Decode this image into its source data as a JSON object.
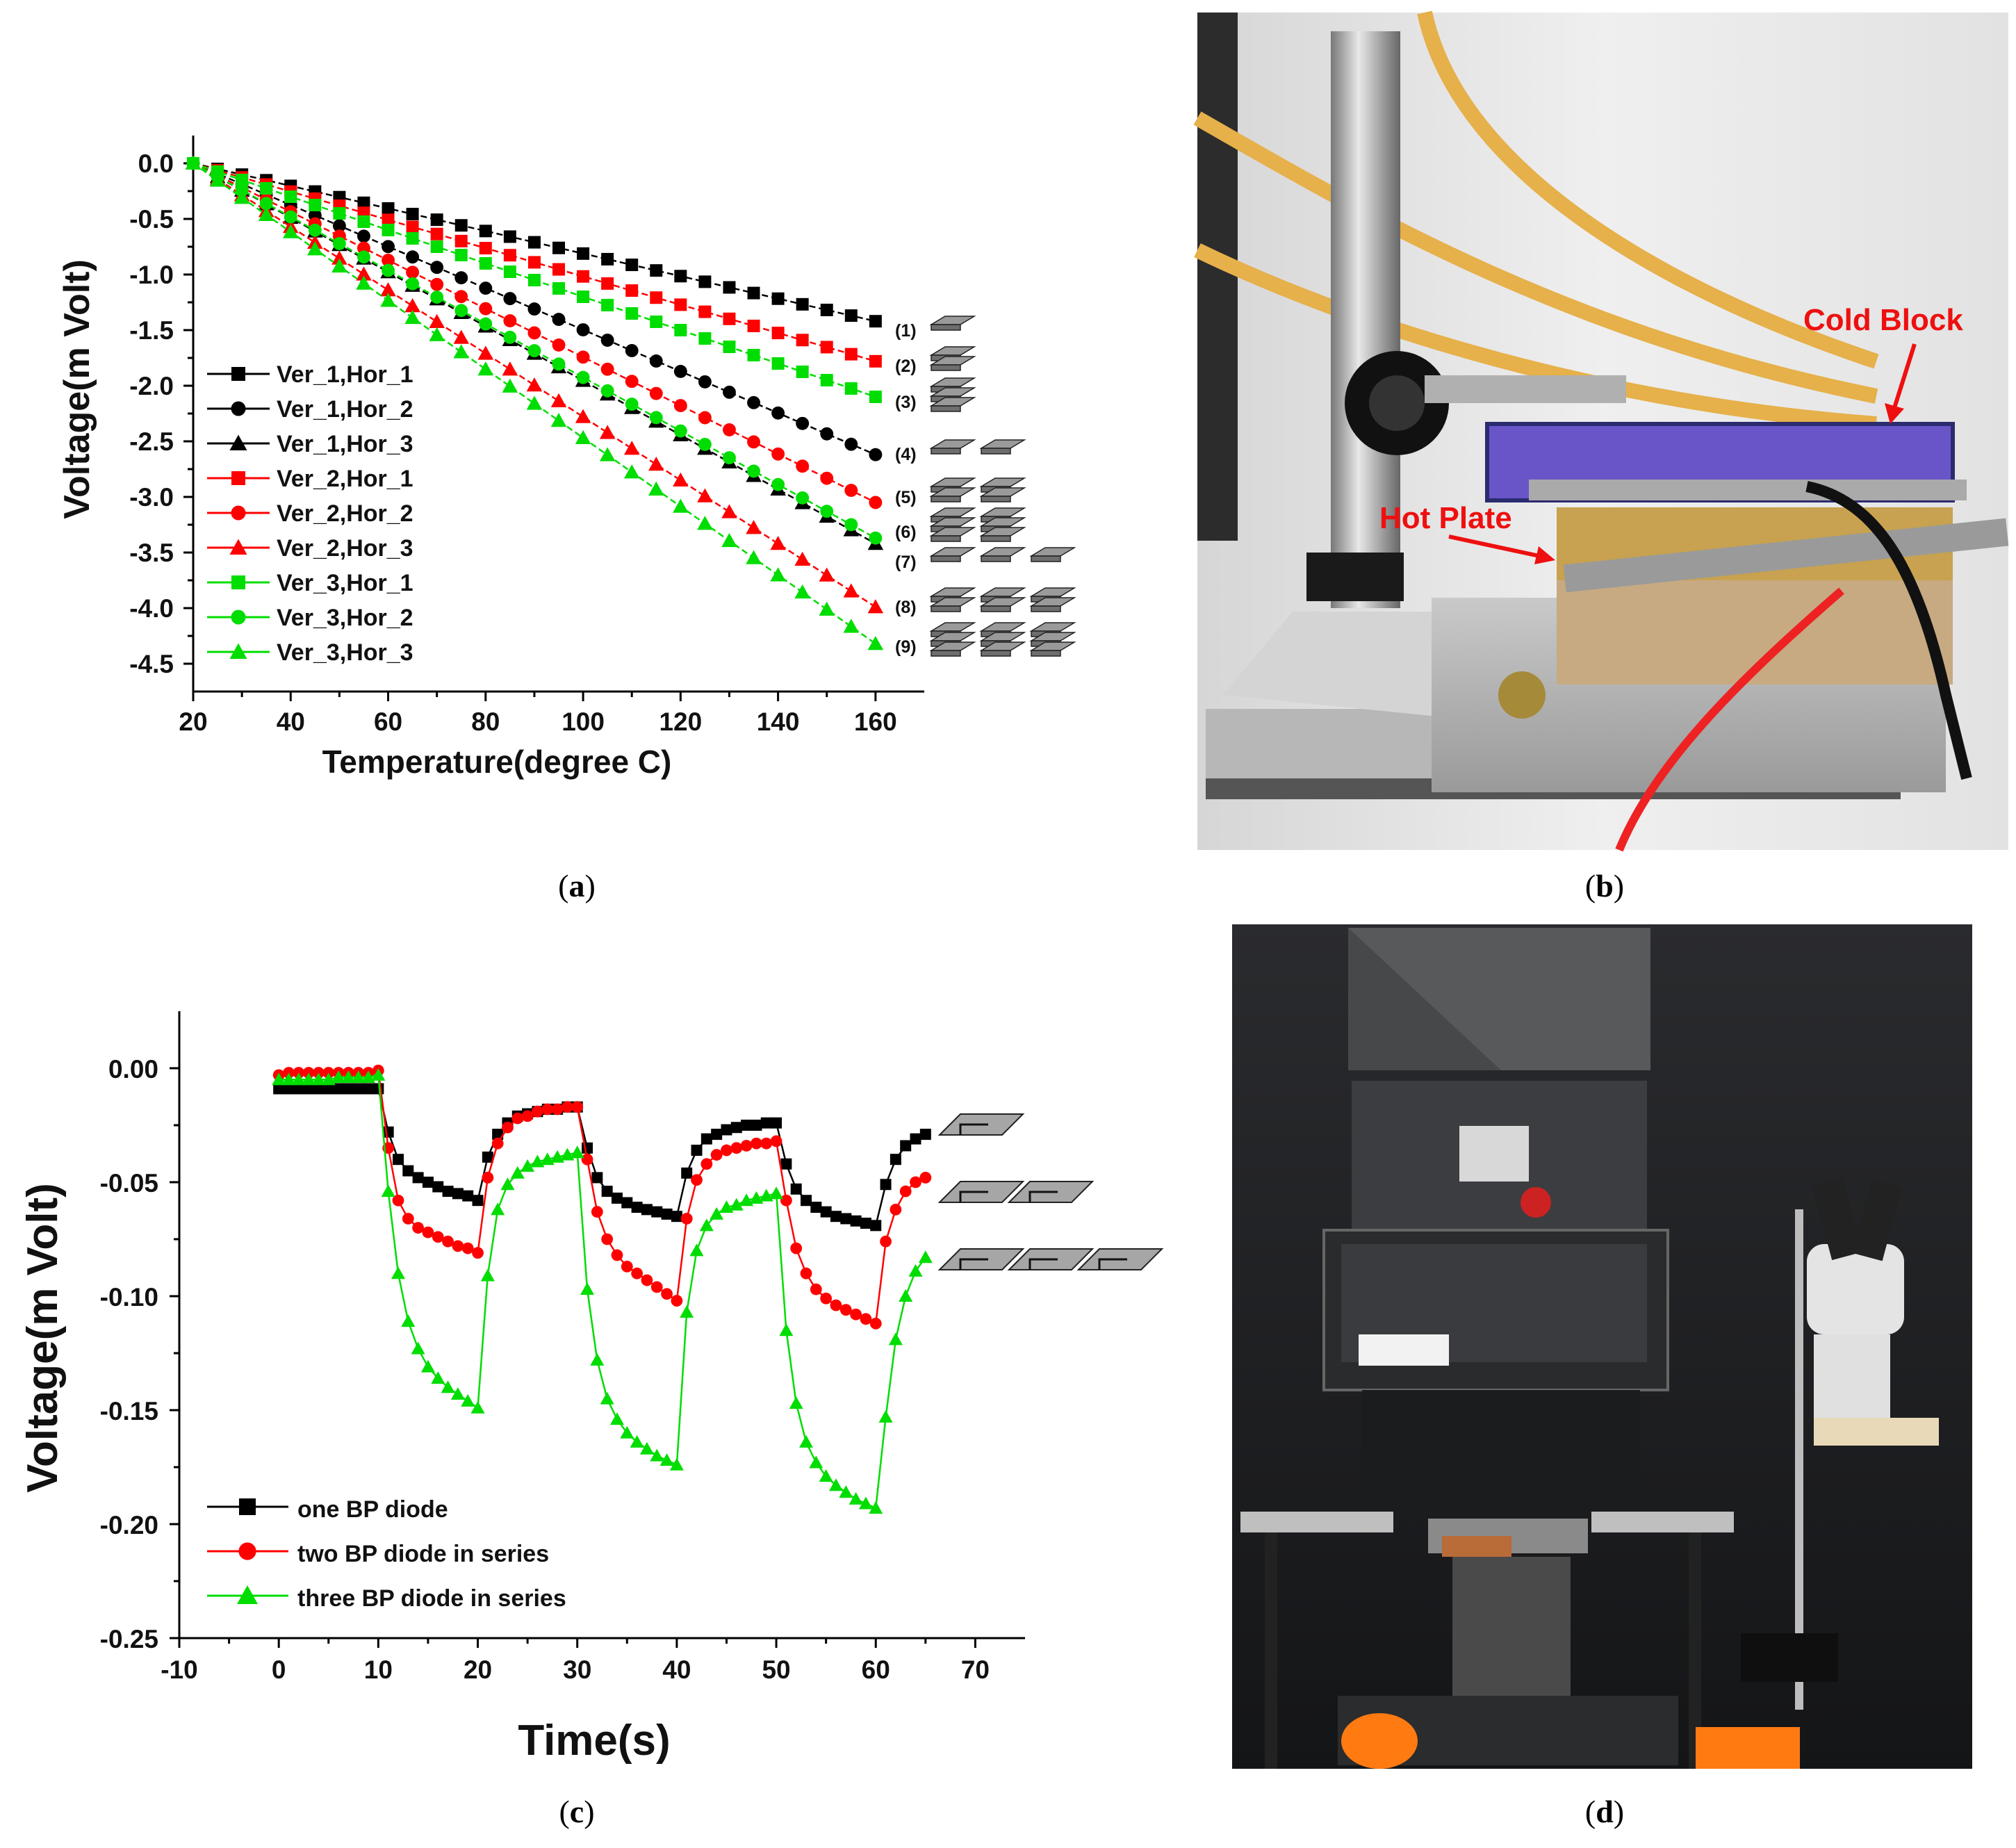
{
  "captions": {
    "a": "a",
    "b": "b",
    "c": "c",
    "d": "d"
  },
  "photo_b": {
    "cold_block_label": "Cold Block",
    "hot_plate_label": "Hot Plate"
  },
  "chart_data": [
    {
      "id": "a",
      "type": "line",
      "xlabel": "Temperature(degree C)",
      "ylabel": "Voltage(m Volt)",
      "xlim": [
        20,
        170
      ],
      "ylim": [
        -4.75,
        0.25
      ],
      "xticks": [
        20,
        40,
        60,
        80,
        100,
        120,
        140,
        160
      ],
      "yticks": [
        0.0,
        -0.5,
        -1.0,
        -1.5,
        -2.0,
        -2.5,
        -3.0,
        -3.5,
        -4.0,
        -4.5
      ],
      "ytick_labels": [
        "0.0",
        "-0.5",
        "-1.0",
        "-1.5",
        "-2.0",
        "-2.5",
        "-3.0",
        "-3.5",
        "-4.0",
        "-4.5"
      ],
      "x": [
        20,
        25,
        30,
        35,
        40,
        45,
        50,
        55,
        60,
        65,
        70,
        75,
        80,
        85,
        90,
        95,
        100,
        105,
        110,
        115,
        120,
        125,
        130,
        135,
        140,
        145,
        150,
        155,
        160
      ],
      "legend_position": "bottom-left",
      "grid": false,
      "series": [
        {
          "name": "Ver_1,Hor_1",
          "color": "#000000",
          "marker": "square",
          "end_value": -1.42,
          "label": "(1)"
        },
        {
          "name": "Ver_1,Hor_2",
          "color": "#000000",
          "marker": "circle",
          "end_value": -2.62,
          "label": "(4)"
        },
        {
          "name": "Ver_1,Hor_3",
          "color": "#000000",
          "marker": "triangle",
          "end_value": -3.42,
          "label": "(6)"
        },
        {
          "name": "Ver_2,Hor_1",
          "color": "#ff0000",
          "marker": "square",
          "end_value": -1.78,
          "label": "(2)"
        },
        {
          "name": "Ver_2,Hor_2",
          "color": "#ff0000",
          "marker": "circle",
          "end_value": -3.05,
          "label": "(5)"
        },
        {
          "name": "Ver_2,Hor_3",
          "color": "#ff0000",
          "marker": "triangle",
          "end_value": -3.99,
          "label": "(8)"
        },
        {
          "name": "Ver_3,Hor_1",
          "color": "#00dd00",
          "marker": "square",
          "end_value": -2.1,
          "label": "(3)"
        },
        {
          "name": "Ver_3,Hor_2",
          "color": "#00dd00",
          "marker": "circle",
          "end_value": -3.37,
          "label": "(7)"
        },
        {
          "name": "Ver_3,Hor_3",
          "color": "#00dd00",
          "marker": "triangle",
          "end_value": -4.32,
          "label": "(9)"
        }
      ],
      "series_values_note_free": true
    },
    {
      "id": "c",
      "type": "line",
      "xlabel": "Time(s)",
      "ylabel": "Voltage(m Volt)",
      "xlim": [
        -10,
        75
      ],
      "ylim": [
        -0.25,
        0.025
      ],
      "xticks": [
        -10,
        0,
        10,
        20,
        30,
        40,
        50,
        60,
        70
      ],
      "yticks": [
        0.0,
        -0.05,
        -0.1,
        -0.15,
        -0.2,
        -0.25
      ],
      "ytick_labels": [
        "0.00",
        "-0.05",
        "-0.10",
        "-0.15",
        "-0.20",
        "-0.25"
      ],
      "legend_position": "bottom-left",
      "grid": false,
      "series": [
        {
          "name": "one BP diode",
          "color": "#000000",
          "marker": "square",
          "points": [
            [
              0,
              -0.009
            ],
            [
              1,
              -0.009
            ],
            [
              2,
              -0.009
            ],
            [
              3,
              -0.009
            ],
            [
              4,
              -0.009
            ],
            [
              5,
              -0.009
            ],
            [
              6,
              -0.009
            ],
            [
              7,
              -0.009
            ],
            [
              8,
              -0.009
            ],
            [
              9,
              -0.009
            ],
            [
              10,
              -0.009
            ],
            [
              11,
              -0.028
            ],
            [
              12,
              -0.04
            ],
            [
              13,
              -0.045
            ],
            [
              14,
              -0.048
            ],
            [
              15,
              -0.05
            ],
            [
              16,
              -0.052
            ],
            [
              17,
              -0.054
            ],
            [
              18,
              -0.055
            ],
            [
              19,
              -0.056
            ],
            [
              20,
              -0.058
            ],
            [
              21,
              -0.039
            ],
            [
              22,
              -0.029
            ],
            [
              23,
              -0.024
            ],
            [
              24,
              -0.021
            ],
            [
              25,
              -0.02
            ],
            [
              26,
              -0.019
            ],
            [
              27,
              -0.018
            ],
            [
              28,
              -0.018
            ],
            [
              29,
              -0.017
            ],
            [
              30,
              -0.017
            ],
            [
              31,
              -0.035
            ],
            [
              32,
              -0.048
            ],
            [
              33,
              -0.054
            ],
            [
              34,
              -0.057
            ],
            [
              35,
              -0.059
            ],
            [
              36,
              -0.061
            ],
            [
              37,
              -0.062
            ],
            [
              38,
              -0.063
            ],
            [
              39,
              -0.064
            ],
            [
              40,
              -0.065
            ],
            [
              41,
              -0.046
            ],
            [
              42,
              -0.036
            ],
            [
              43,
              -0.031
            ],
            [
              44,
              -0.029
            ],
            [
              45,
              -0.027
            ],
            [
              46,
              -0.026
            ],
            [
              47,
              -0.025
            ],
            [
              48,
              -0.025
            ],
            [
              49,
              -0.024
            ],
            [
              50,
              -0.024
            ],
            [
              51,
              -0.042
            ],
            [
              52,
              -0.053
            ],
            [
              53,
              -0.058
            ],
            [
              54,
              -0.061
            ],
            [
              55,
              -0.063
            ],
            [
              56,
              -0.065
            ],
            [
              57,
              -0.066
            ],
            [
              58,
              -0.067
            ],
            [
              59,
              -0.068
            ],
            [
              60,
              -0.069
            ],
            [
              61,
              -0.051
            ],
            [
              62,
              -0.04
            ],
            [
              63,
              -0.034
            ],
            [
              64,
              -0.031
            ],
            [
              65,
              -0.029
            ]
          ]
        },
        {
          "name": "two BP diode in series",
          "color": "#ff0000",
          "marker": "circle",
          "points": [
            [
              0,
              -0.003
            ],
            [
              1,
              -0.002
            ],
            [
              2,
              -0.002
            ],
            [
              3,
              -0.002
            ],
            [
              4,
              -0.002
            ],
            [
              5,
              -0.002
            ],
            [
              6,
              -0.002
            ],
            [
              7,
              -0.002
            ],
            [
              8,
              -0.002
            ],
            [
              9,
              -0.002
            ],
            [
              10,
              -0.001
            ],
            [
              11,
              -0.035
            ],
            [
              12,
              -0.058
            ],
            [
              13,
              -0.066
            ],
            [
              14,
              -0.07
            ],
            [
              15,
              -0.072
            ],
            [
              16,
              -0.074
            ],
            [
              17,
              -0.076
            ],
            [
              18,
              -0.078
            ],
            [
              19,
              -0.079
            ],
            [
              20,
              -0.081
            ],
            [
              21,
              -0.048
            ],
            [
              22,
              -0.033
            ],
            [
              23,
              -0.026
            ],
            [
              24,
              -0.022
            ],
            [
              25,
              -0.021
            ],
            [
              26,
              -0.019
            ],
            [
              27,
              -0.018
            ],
            [
              28,
              -0.018
            ],
            [
              29,
              -0.017
            ],
            [
              30,
              -0.017
            ],
            [
              31,
              -0.04
            ],
            [
              32,
              -0.063
            ],
            [
              33,
              -0.075
            ],
            [
              34,
              -0.082
            ],
            [
              35,
              -0.087
            ],
            [
              36,
              -0.09
            ],
            [
              37,
              -0.093
            ],
            [
              38,
              -0.096
            ],
            [
              39,
              -0.099
            ],
            [
              40,
              -0.102
            ],
            [
              41,
              -0.066
            ],
            [
              42,
              -0.049
            ],
            [
              43,
              -0.042
            ],
            [
              44,
              -0.038
            ],
            [
              45,
              -0.036
            ],
            [
              46,
              -0.035
            ],
            [
              47,
              -0.034
            ],
            [
              48,
              -0.033
            ],
            [
              49,
              -0.033
            ],
            [
              50,
              -0.032
            ],
            [
              51,
              -0.058
            ],
            [
              52,
              -0.079
            ],
            [
              53,
              -0.09
            ],
            [
              54,
              -0.097
            ],
            [
              55,
              -0.101
            ],
            [
              56,
              -0.104
            ],
            [
              57,
              -0.106
            ],
            [
              58,
              -0.108
            ],
            [
              59,
              -0.11
            ],
            [
              60,
              -0.112
            ],
            [
              61,
              -0.076
            ],
            [
              62,
              -0.062
            ],
            [
              63,
              -0.054
            ],
            [
              64,
              -0.05
            ],
            [
              65,
              -0.048
            ]
          ]
        },
        {
          "name": "three BP diode in series",
          "color": "#00dd00",
          "marker": "triangle",
          "points": [
            [
              0,
              -0.005
            ],
            [
              1,
              -0.005
            ],
            [
              2,
              -0.005
            ],
            [
              3,
              -0.005
            ],
            [
              4,
              -0.005
            ],
            [
              5,
              -0.005
            ],
            [
              6,
              -0.004
            ],
            [
              7,
              -0.004
            ],
            [
              8,
              -0.004
            ],
            [
              9,
              -0.004
            ],
            [
              10,
              -0.003
            ],
            [
              11,
              -0.054
            ],
            [
              12,
              -0.09
            ],
            [
              13,
              -0.111
            ],
            [
              14,
              -0.123
            ],
            [
              15,
              -0.131
            ],
            [
              16,
              -0.136
            ],
            [
              17,
              -0.14
            ],
            [
              18,
              -0.143
            ],
            [
              19,
              -0.146
            ],
            [
              20,
              -0.149
            ],
            [
              21,
              -0.091
            ],
            [
              22,
              -0.062
            ],
            [
              23,
              -0.051
            ],
            [
              24,
              -0.046
            ],
            [
              25,
              -0.043
            ],
            [
              26,
              -0.041
            ],
            [
              27,
              -0.04
            ],
            [
              28,
              -0.039
            ],
            [
              29,
              -0.038
            ],
            [
              30,
              -0.037
            ],
            [
              31,
              -0.097
            ],
            [
              32,
              -0.128
            ],
            [
              33,
              -0.145
            ],
            [
              34,
              -0.154
            ],
            [
              35,
              -0.16
            ],
            [
              36,
              -0.164
            ],
            [
              37,
              -0.167
            ],
            [
              38,
              -0.17
            ],
            [
              39,
              -0.172
            ],
            [
              40,
              -0.174
            ],
            [
              41,
              -0.107
            ],
            [
              42,
              -0.08
            ],
            [
              43,
              -0.069
            ],
            [
              44,
              -0.064
            ],
            [
              45,
              -0.061
            ],
            [
              46,
              -0.06
            ],
            [
              47,
              -0.058
            ],
            [
              48,
              -0.057
            ],
            [
              49,
              -0.056
            ],
            [
              50,
              -0.055
            ],
            [
              51,
              -0.115
            ],
            [
              52,
              -0.147
            ],
            [
              53,
              -0.164
            ],
            [
              54,
              -0.173
            ],
            [
              55,
              -0.179
            ],
            [
              56,
              -0.183
            ],
            [
              57,
              -0.186
            ],
            [
              58,
              -0.189
            ],
            [
              59,
              -0.191
            ],
            [
              60,
              -0.193
            ],
            [
              61,
              -0.153
            ],
            [
              62,
              -0.119
            ],
            [
              63,
              -0.1
            ],
            [
              64,
              -0.089
            ],
            [
              65,
              -0.083
            ]
          ]
        }
      ]
    }
  ]
}
